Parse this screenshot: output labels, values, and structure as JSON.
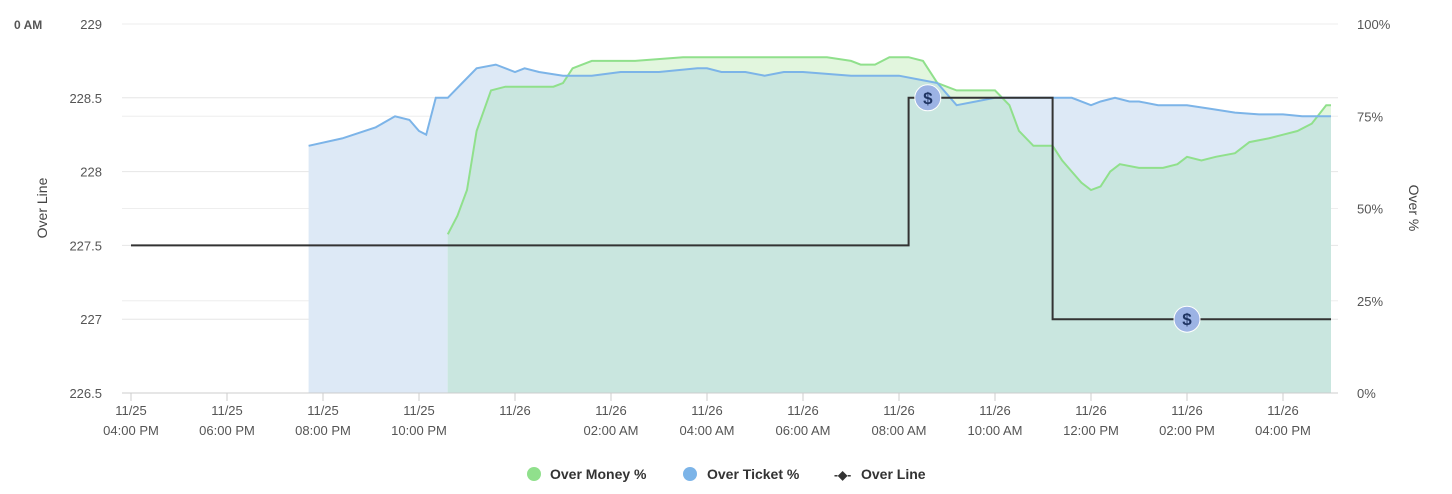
{
  "corner_label": "0 AM",
  "legend": {
    "money": "Over Money %",
    "ticket": "Over Ticket %",
    "line": "Over Line",
    "line_symbol": "-◆-"
  },
  "marker_symbol": "$",
  "colors": {
    "money_line": "#90e08c",
    "money_fill": "#dff5da",
    "ticket_line": "#7cb4e8",
    "ticket_fill": "#dde9f6",
    "overlap_fill": "#c9e6df",
    "over_line": "#333333",
    "marker": "#9cb3e4"
  },
  "chart_data": {
    "type": "line",
    "title": "",
    "ylabel": "Over Line",
    "y2label": "Over %",
    "ylim": [
      226.5,
      229
    ],
    "y2lim": [
      0,
      100
    ],
    "yticks": [
      "226.5",
      "227",
      "227.5",
      "228",
      "228.5",
      "229"
    ],
    "y2ticks": [
      "0%",
      "25%",
      "50%",
      "75%",
      "100%"
    ],
    "x_range_hours": [
      0,
      25
    ],
    "xticks": [
      {
        "t": 0,
        "date": "11/25",
        "time": "04:00 PM"
      },
      {
        "t": 2,
        "date": "11/25",
        "time": "06:00 PM"
      },
      {
        "t": 4,
        "date": "11/25",
        "time": "08:00 PM"
      },
      {
        "t": 6,
        "date": "11/25",
        "time": "10:00 PM"
      },
      {
        "t": 8,
        "date": "11/26",
        "time": ""
      },
      {
        "t": 10,
        "date": "11/26",
        "time": "02:00 AM"
      },
      {
        "t": 12,
        "date": "11/26",
        "time": "04:00 AM"
      },
      {
        "t": 14,
        "date": "11/26",
        "time": "06:00 AM"
      },
      {
        "t": 16,
        "date": "11/26",
        "time": "08:00 AM"
      },
      {
        "t": 18,
        "date": "11/26",
        "time": "10:00 AM"
      },
      {
        "t": 20,
        "date": "11/26",
        "time": "12:00 PM"
      },
      {
        "t": 22,
        "date": "11/26",
        "time": "02:00 PM"
      },
      {
        "t": 24,
        "date": "11/26",
        "time": "04:00 PM"
      }
    ],
    "series": [
      {
        "name": "Over Ticket %",
        "axis": "right",
        "points": [
          [
            3.7,
            67
          ],
          [
            4.4,
            69
          ],
          [
            5.1,
            72
          ],
          [
            5.5,
            75
          ],
          [
            5.8,
            74
          ],
          [
            6.0,
            71
          ],
          [
            6.15,
            70
          ],
          [
            6.35,
            80
          ],
          [
            6.6,
            80
          ],
          [
            6.9,
            84
          ],
          [
            7.2,
            88
          ],
          [
            7.6,
            89
          ],
          [
            8.0,
            87
          ],
          [
            8.2,
            88
          ],
          [
            8.5,
            87
          ],
          [
            9.0,
            86
          ],
          [
            9.6,
            86
          ],
          [
            10.2,
            87
          ],
          [
            11.0,
            87
          ],
          [
            11.8,
            88
          ],
          [
            12.0,
            88
          ],
          [
            12.3,
            87
          ],
          [
            12.8,
            87
          ],
          [
            13.2,
            86
          ],
          [
            13.6,
            87
          ],
          [
            14.0,
            87
          ],
          [
            15.0,
            86
          ],
          [
            15.6,
            86
          ],
          [
            16.0,
            86
          ],
          [
            16.4,
            85
          ],
          [
            16.8,
            84
          ],
          [
            17.0,
            81
          ],
          [
            17.2,
            78
          ],
          [
            17.6,
            79
          ],
          [
            18.0,
            80
          ],
          [
            18.5,
            80
          ],
          [
            19.0,
            80
          ],
          [
            19.4,
            80
          ],
          [
            19.6,
            80
          ],
          [
            20.0,
            78
          ],
          [
            20.2,
            79
          ],
          [
            20.5,
            80
          ],
          [
            20.8,
            79
          ],
          [
            21.0,
            79
          ],
          [
            21.4,
            78
          ],
          [
            22.0,
            78
          ],
          [
            22.5,
            77
          ],
          [
            23.0,
            76
          ],
          [
            23.5,
            75.5
          ],
          [
            24.0,
            75.5
          ],
          [
            24.4,
            75
          ],
          [
            24.8,
            75
          ],
          [
            25.0,
            75
          ]
        ]
      },
      {
        "name": "Over Money %",
        "axis": "right",
        "points": [
          [
            6.6,
            43
          ],
          [
            6.8,
            48
          ],
          [
            7.0,
            55
          ],
          [
            7.2,
            71
          ],
          [
            7.5,
            82
          ],
          [
            7.8,
            83
          ],
          [
            8.2,
            83
          ],
          [
            8.8,
            83
          ],
          [
            9.0,
            84
          ],
          [
            9.2,
            88
          ],
          [
            9.6,
            90
          ],
          [
            10.5,
            90
          ],
          [
            11.5,
            91
          ],
          [
            12.5,
            91
          ],
          [
            13.5,
            91
          ],
          [
            14.5,
            91
          ],
          [
            15.0,
            90
          ],
          [
            15.2,
            89
          ],
          [
            15.5,
            89
          ],
          [
            15.8,
            91
          ],
          [
            16.2,
            91
          ],
          [
            16.5,
            90
          ],
          [
            16.6,
            88
          ],
          [
            16.8,
            84
          ],
          [
            17.2,
            82
          ],
          [
            17.6,
            82
          ],
          [
            18.0,
            82
          ],
          [
            18.3,
            78
          ],
          [
            18.5,
            71
          ],
          [
            18.8,
            67
          ],
          [
            19.2,
            67
          ],
          [
            19.4,
            63
          ],
          [
            19.6,
            60
          ],
          [
            19.8,
            57
          ],
          [
            20.0,
            55
          ],
          [
            20.2,
            56
          ],
          [
            20.4,
            60
          ],
          [
            20.6,
            62
          ],
          [
            21.0,
            61
          ],
          [
            21.5,
            61
          ],
          [
            21.8,
            62
          ],
          [
            22.0,
            64
          ],
          [
            22.3,
            63
          ],
          [
            22.6,
            64
          ],
          [
            23.0,
            65
          ],
          [
            23.3,
            68
          ],
          [
            23.7,
            69
          ],
          [
            24.0,
            70
          ],
          [
            24.3,
            71
          ],
          [
            24.6,
            73
          ],
          [
            24.9,
            78
          ],
          [
            25.0,
            78
          ]
        ]
      },
      {
        "name": "Over Line",
        "axis": "left",
        "step": true,
        "points": [
          [
            0,
            227.5
          ],
          [
            16.2,
            227.5
          ],
          [
            16.2,
            228.5
          ],
          [
            19.2,
            228.5
          ],
          [
            19.2,
            227.0
          ],
          [
            25.0,
            227.0
          ]
        ]
      }
    ],
    "markers": [
      {
        "t": 16.6,
        "line": 228.5
      },
      {
        "t": 22.0,
        "line": 227.0
      }
    ]
  }
}
